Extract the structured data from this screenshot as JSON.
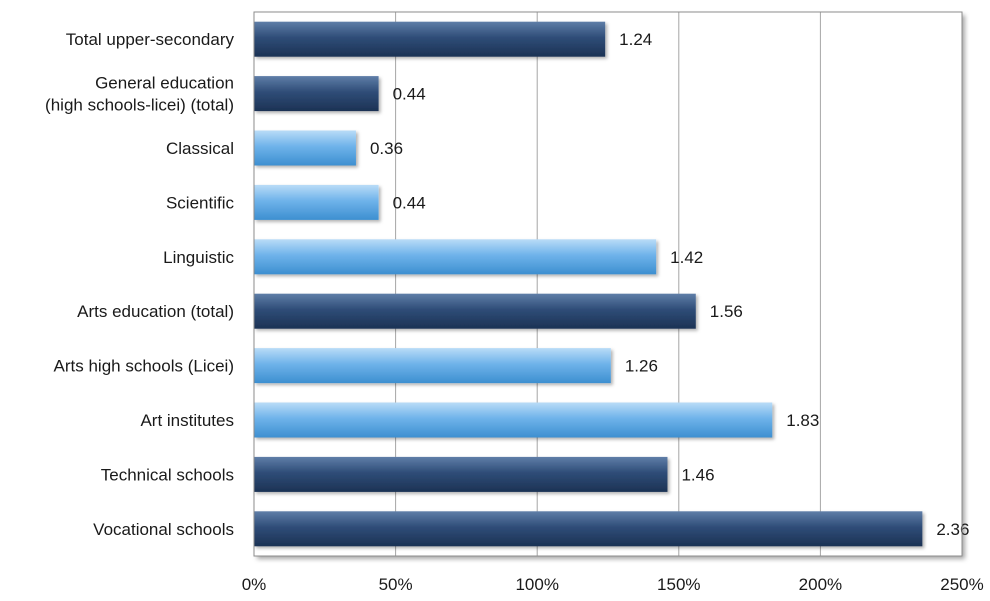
{
  "chart_data": {
    "type": "bar",
    "orientation": "horizontal",
    "categories": [
      [
        "Total upper-secondary"
      ],
      [
        "General education",
        "(high schools-licei) (total)"
      ],
      [
        "Classical"
      ],
      [
        "Scientific"
      ],
      [
        "Linguistic"
      ],
      [
        "Arts education (total)"
      ],
      [
        "Arts high schools (Licei)"
      ],
      [
        "Art institutes"
      ],
      [
        "Technical schools"
      ],
      [
        "Vocational schools"
      ]
    ],
    "values": [
      1.24,
      0.44,
      0.36,
      0.44,
      1.42,
      1.56,
      1.26,
      1.83,
      1.46,
      2.36
    ],
    "data_labels": [
      "1.24",
      "0.44",
      "0.36",
      "0.44",
      "1.42",
      "1.56",
      "1.26",
      "1.83",
      "1.46",
      "2.36"
    ],
    "bar_style": [
      "dark",
      "dark",
      "light",
      "light",
      "light",
      "dark",
      "light",
      "light",
      "dark",
      "dark"
    ],
    "x_ticks": [
      "0%",
      "50%",
      "100%",
      "150%",
      "200%",
      "250%"
    ],
    "xlim": [
      0,
      2.5
    ],
    "grid": true,
    "legend": "none",
    "colors": {
      "dark_top": "#5f7ea8",
      "dark_mid": "#2f4d78",
      "dark_bottom": "#1c3254",
      "light_top": "#b9dcf7",
      "light_mid": "#6fb3ea",
      "light_bottom": "#3d8fd0",
      "gridline": "#a6a6a6",
      "plot_border": "#8c8c8c"
    }
  }
}
